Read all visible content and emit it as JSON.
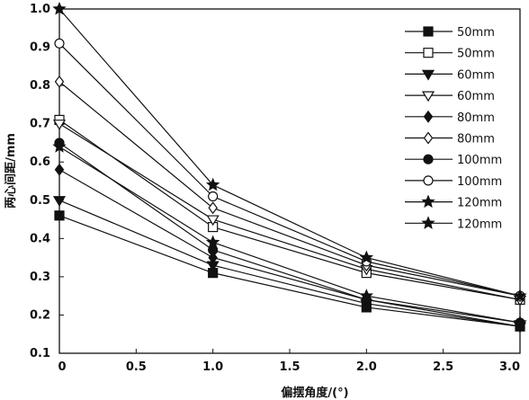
{
  "chart_data": {
    "type": "line",
    "xlabel": "偏摆角度/(°)",
    "ylabel": "两心间距/mm",
    "xlim": [
      0,
      3.0
    ],
    "ylim": [
      0.1,
      1.0
    ],
    "xticks": [
      "0",
      "0.5",
      "1.0",
      "1.5",
      "2.0",
      "2.5",
      "3.0"
    ],
    "yticks": [
      "0.1",
      "0.2",
      "0.3",
      "0.4",
      "0.5",
      "0.6",
      "0.7",
      "0.8",
      "0.9",
      "1.0"
    ],
    "x": [
      0,
      1.0,
      2.0,
      3.0
    ],
    "legend_position": "top-right",
    "series": [
      {
        "name": "50mm",
        "marker": "square-filled",
        "values": [
          0.46,
          0.31,
          0.22,
          0.17
        ]
      },
      {
        "name": "50mm",
        "marker": "square-open",
        "values": [
          0.71,
          0.43,
          0.31,
          0.24
        ]
      },
      {
        "name": "60mm",
        "marker": "triangle-filled",
        "values": [
          0.5,
          0.33,
          0.23,
          0.17
        ]
      },
      {
        "name": "60mm",
        "marker": "triangle-open",
        "values": [
          0.7,
          0.45,
          0.32,
          0.24
        ]
      },
      {
        "name": "80mm",
        "marker": "diamond-filled",
        "values": [
          0.58,
          0.35,
          0.24,
          0.17
        ]
      },
      {
        "name": "80mm",
        "marker": "diamond-open",
        "values": [
          0.81,
          0.48,
          0.33,
          0.25
        ]
      },
      {
        "name": "100mm",
        "marker": "circle-filled",
        "values": [
          0.65,
          0.37,
          0.24,
          0.18
        ]
      },
      {
        "name": "100mm",
        "marker": "circle-open",
        "values": [
          0.91,
          0.51,
          0.34,
          0.25
        ]
      },
      {
        "name": "120mm",
        "marker": "star-filled",
        "values": [
          0.64,
          0.39,
          0.25,
          0.18
        ]
      },
      {
        "name": "120mm",
        "marker": "star-filled",
        "values": [
          1.0,
          0.54,
          0.35,
          0.25
        ]
      }
    ]
  }
}
